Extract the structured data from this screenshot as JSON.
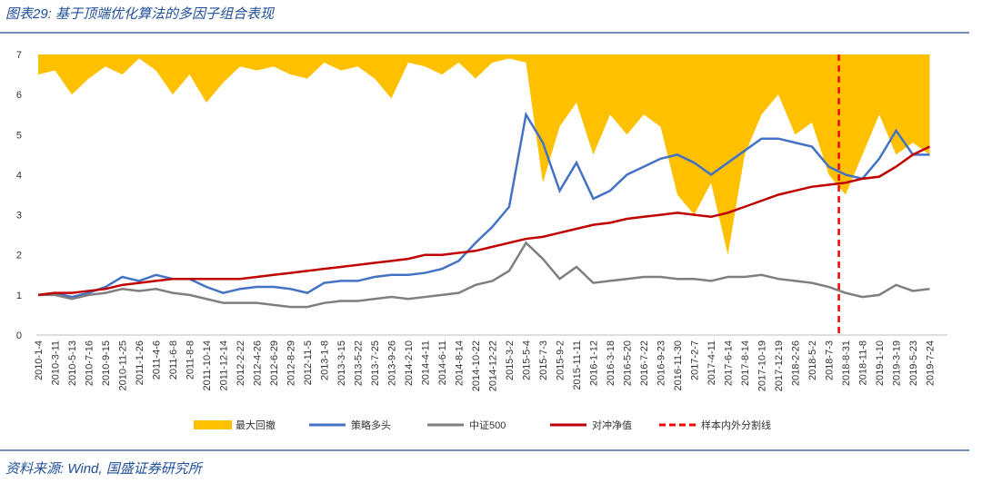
{
  "chart_data": {
    "type": "line",
    "title": "图表29:  基于顶端优化算法的多因子组合表现",
    "source": "资料来源:  Wind,  国盛证券研究所",
    "categories": [
      "2010-1-4",
      "2010-3-11",
      "2010-5-13",
      "2010-7-16",
      "2010-9-15",
      "2010-11-25",
      "2011-1-26",
      "2011-4-6",
      "2011-6-8",
      "2011-8-8",
      "2011-10-14",
      "2011-12-14",
      "2012-2-22",
      "2012-4-26",
      "2012-6-29",
      "2012-8-29",
      "2012-11-5",
      "2013-1-8",
      "2013-3-15",
      "2013-5-22",
      "2013-7-25",
      "2013-9-26",
      "2014-2-10",
      "2014-4-11",
      "2014-6-11",
      "2014-8-14",
      "2014-10-22",
      "2014-12-22",
      "2015-3-2",
      "2015-5-4",
      "2015-7-3",
      "2015-9-2",
      "2015-11-11",
      "2016-1-12",
      "2016-3-18",
      "2016-5-20",
      "2016-7-22",
      "2016-9-23",
      "2016-11-30",
      "2017-2-7",
      "2017-4-11",
      "2017-6-14",
      "2017-8-14",
      "2017-10-19",
      "2017-12-19",
      "2018-2-26",
      "2018-5-2",
      "2018-7-3",
      "2018-8-31",
      "2018-11-8",
      "2019-1-10",
      "2019-3-19",
      "2019-5-23",
      "2019-7-24"
    ],
    "ylim": [
      0,
      7
    ],
    "yticks": [
      0,
      1,
      2,
      3,
      4,
      5,
      6,
      7
    ],
    "series": [
      {
        "name": "最大回撤",
        "kind": "area-top",
        "color": "#FFC000",
        "values": [
          6.5,
          6.6,
          6.0,
          6.4,
          6.7,
          6.5,
          6.9,
          6.6,
          6.0,
          6.5,
          5.8,
          6.3,
          6.7,
          6.6,
          6.7,
          6.5,
          6.4,
          6.8,
          6.6,
          6.7,
          6.4,
          5.9,
          6.8,
          6.7,
          6.5,
          6.8,
          6.4,
          6.8,
          6.9,
          6.8,
          3.8,
          5.2,
          5.8,
          4.5,
          5.5,
          5.0,
          5.5,
          5.2,
          3.5,
          3.0,
          3.8,
          2.0,
          4.5,
          5.5,
          6.0,
          5.0,
          5.3,
          4.0,
          3.5,
          4.5,
          5.5,
          4.5,
          4.8,
          4.5
        ]
      },
      {
        "name": "策略多头",
        "kind": "line",
        "color": "#4472C4",
        "values": [
          1.0,
          1.05,
          0.95,
          1.05,
          1.2,
          1.45,
          1.35,
          1.5,
          1.4,
          1.4,
          1.2,
          1.05,
          1.15,
          1.2,
          1.2,
          1.15,
          1.05,
          1.3,
          1.35,
          1.35,
          1.45,
          1.5,
          1.5,
          1.55,
          1.65,
          1.85,
          2.3,
          2.7,
          3.2,
          5.5,
          4.8,
          3.6,
          4.3,
          3.4,
          3.6,
          4.0,
          4.2,
          4.4,
          4.5,
          4.3,
          4.0,
          4.3,
          4.6,
          4.9,
          4.9,
          4.8,
          4.7,
          4.2,
          4.0,
          3.9,
          4.4,
          5.1,
          4.5,
          4.5
        ]
      },
      {
        "name": "中证500",
        "kind": "line",
        "color": "#7F7F7F",
        "values": [
          1.0,
          1.0,
          0.9,
          1.0,
          1.05,
          1.15,
          1.1,
          1.15,
          1.05,
          1.0,
          0.9,
          0.8,
          0.8,
          0.8,
          0.75,
          0.7,
          0.7,
          0.8,
          0.85,
          0.85,
          0.9,
          0.95,
          0.9,
          0.95,
          1.0,
          1.05,
          1.25,
          1.35,
          1.6,
          2.3,
          1.9,
          1.4,
          1.7,
          1.3,
          1.35,
          1.4,
          1.45,
          1.45,
          1.4,
          1.4,
          1.35,
          1.45,
          1.45,
          1.5,
          1.4,
          1.35,
          1.3,
          1.2,
          1.05,
          0.95,
          1.0,
          1.25,
          1.1,
          1.15
        ]
      },
      {
        "name": "对冲净值",
        "kind": "line",
        "color": "#C00000",
        "values": [
          1.0,
          1.05,
          1.05,
          1.1,
          1.15,
          1.25,
          1.3,
          1.35,
          1.4,
          1.4,
          1.4,
          1.4,
          1.4,
          1.45,
          1.5,
          1.55,
          1.6,
          1.65,
          1.7,
          1.75,
          1.8,
          1.85,
          1.9,
          2.0,
          2.0,
          2.05,
          2.1,
          2.2,
          2.3,
          2.4,
          2.45,
          2.55,
          2.65,
          2.75,
          2.8,
          2.9,
          2.95,
          3.0,
          3.05,
          3.0,
          2.95,
          3.05,
          3.2,
          3.35,
          3.5,
          3.6,
          3.7,
          3.75,
          3.8,
          3.9,
          3.95,
          4.2,
          4.5,
          4.7
        ]
      },
      {
        "name": "样本内外分割线",
        "kind": "vline",
        "color": "#FF0000",
        "x": "2018-7-3"
      }
    ]
  }
}
